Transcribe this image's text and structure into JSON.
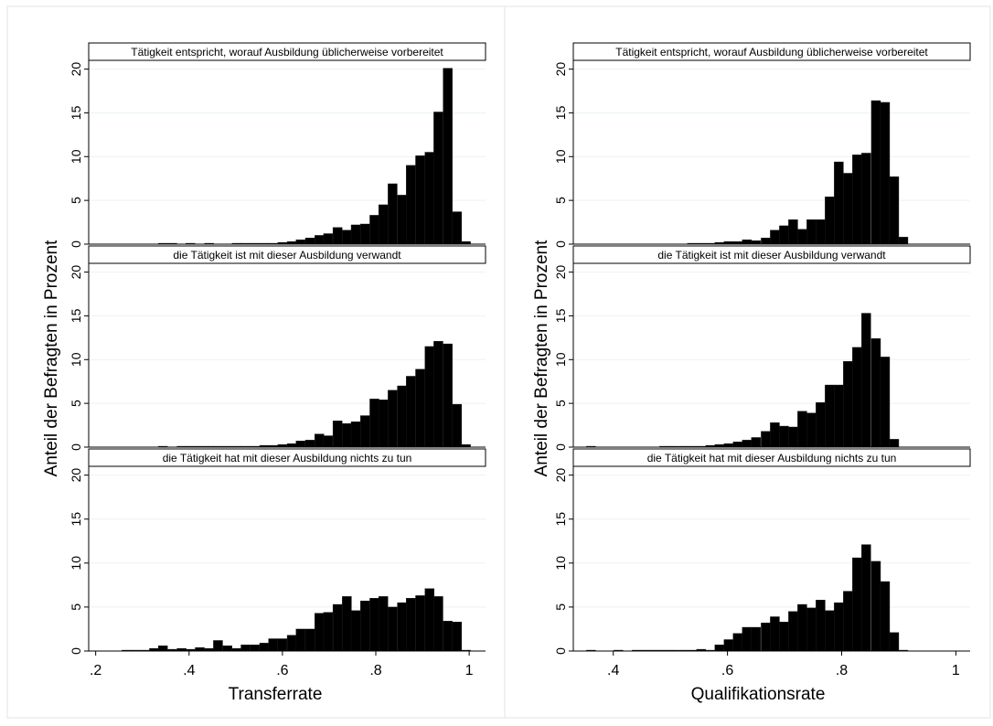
{
  "chart_data": [
    {
      "type": "bar",
      "xlabel": "Transferrate",
      "ylabel": "Anteil der Befragten in Prozent",
      "xlim": [
        0.185,
        1.035
      ],
      "ylim": [
        0,
        21
      ],
      "xticks": [
        0.2,
        0.4,
        0.6,
        0.8,
        1.0
      ],
      "xtick_labels": [
        ".2",
        ".4",
        ".6",
        ".8",
        "1"
      ],
      "yticks": [
        0,
        5,
        10,
        15,
        20
      ],
      "ytick_labels": [
        "0",
        "5",
        "10",
        "15",
        "20"
      ],
      "bin_width": 0.0197,
      "grid": true,
      "panels": [
        {
          "title": "Tätigkeit entspricht, worauf Ausbildung üblicherweise vorbereitet",
          "bins": [
            {
              "x": 0.344,
              "value": 0.1
            },
            {
              "x": 0.364,
              "value": 0.1
            },
            {
              "x": 0.403,
              "value": 0.1
            },
            {
              "x": 0.443,
              "value": 0.1
            },
            {
              "x": 0.502,
              "value": 0.1
            },
            {
              "x": 0.521,
              "value": 0.1
            },
            {
              "x": 0.541,
              "value": 0.1
            },
            {
              "x": 0.561,
              "value": 0.1
            },
            {
              "x": 0.58,
              "value": 0.1
            },
            {
              "x": 0.6,
              "value": 0.2
            },
            {
              "x": 0.62,
              "value": 0.3
            },
            {
              "x": 0.639,
              "value": 0.5
            },
            {
              "x": 0.659,
              "value": 0.7
            },
            {
              "x": 0.679,
              "value": 1.0
            },
            {
              "x": 0.698,
              "value": 1.2
            },
            {
              "x": 0.718,
              "value": 1.9
            },
            {
              "x": 0.738,
              "value": 1.6
            },
            {
              "x": 0.757,
              "value": 2.2
            },
            {
              "x": 0.777,
              "value": 2.3
            },
            {
              "x": 0.797,
              "value": 3.3
            },
            {
              "x": 0.816,
              "value": 4.5
            },
            {
              "x": 0.836,
              "value": 6.9
            },
            {
              "x": 0.856,
              "value": 5.6
            },
            {
              "x": 0.875,
              "value": 9.0
            },
            {
              "x": 0.895,
              "value": 10.1
            },
            {
              "x": 0.915,
              "value": 10.5
            },
            {
              "x": 0.934,
              "value": 15.1
            },
            {
              "x": 0.954,
              "value": 20.1
            },
            {
              "x": 0.974,
              "value": 3.7
            },
            {
              "x": 0.993,
              "value": 0.3
            }
          ]
        },
        {
          "title": "die Tätigkeit ist mit dieser Ausbildung verwandt",
          "bins": [
            {
              "x": 0.344,
              "value": 0.1
            },
            {
              "x": 0.384,
              "value": 0.1
            },
            {
              "x": 0.403,
              "value": 0.1
            },
            {
              "x": 0.423,
              "value": 0.1
            },
            {
              "x": 0.443,
              "value": 0.1
            },
            {
              "x": 0.462,
              "value": 0.1
            },
            {
              "x": 0.482,
              "value": 0.1
            },
            {
              "x": 0.502,
              "value": 0.1
            },
            {
              "x": 0.521,
              "value": 0.1
            },
            {
              "x": 0.541,
              "value": 0.1
            },
            {
              "x": 0.561,
              "value": 0.2
            },
            {
              "x": 0.58,
              "value": 0.2
            },
            {
              "x": 0.6,
              "value": 0.3
            },
            {
              "x": 0.62,
              "value": 0.4
            },
            {
              "x": 0.639,
              "value": 0.7
            },
            {
              "x": 0.659,
              "value": 0.8
            },
            {
              "x": 0.679,
              "value": 1.5
            },
            {
              "x": 0.698,
              "value": 1.3
            },
            {
              "x": 0.718,
              "value": 3.0
            },
            {
              "x": 0.738,
              "value": 2.7
            },
            {
              "x": 0.757,
              "value": 2.9
            },
            {
              "x": 0.777,
              "value": 3.6
            },
            {
              "x": 0.797,
              "value": 5.5
            },
            {
              "x": 0.816,
              "value": 5.4
            },
            {
              "x": 0.836,
              "value": 6.5
            },
            {
              "x": 0.856,
              "value": 7.0
            },
            {
              "x": 0.875,
              "value": 8.1
            },
            {
              "x": 0.895,
              "value": 8.9
            },
            {
              "x": 0.915,
              "value": 11.5
            },
            {
              "x": 0.934,
              "value": 12.1
            },
            {
              "x": 0.954,
              "value": 11.8
            },
            {
              "x": 0.974,
              "value": 4.9
            },
            {
              "x": 0.993,
              "value": 0.3
            }
          ]
        },
        {
          "title": "die Tätigkeit hat mit dieser Ausbildung nichts zu tun",
          "bins": [
            {
              "x": 0.266,
              "value": 0.1
            },
            {
              "x": 0.285,
              "value": 0.1
            },
            {
              "x": 0.305,
              "value": 0.1
            },
            {
              "x": 0.325,
              "value": 0.3
            },
            {
              "x": 0.344,
              "value": 0.6
            },
            {
              "x": 0.364,
              "value": 0.2
            },
            {
              "x": 0.384,
              "value": 0.3
            },
            {
              "x": 0.403,
              "value": 0.2
            },
            {
              "x": 0.423,
              "value": 0.4
            },
            {
              "x": 0.443,
              "value": 0.3
            },
            {
              "x": 0.462,
              "value": 1.2
            },
            {
              "x": 0.482,
              "value": 0.6
            },
            {
              "x": 0.502,
              "value": 0.3
            },
            {
              "x": 0.521,
              "value": 0.7
            },
            {
              "x": 0.541,
              "value": 0.7
            },
            {
              "x": 0.561,
              "value": 0.9
            },
            {
              "x": 0.58,
              "value": 1.4
            },
            {
              "x": 0.6,
              "value": 1.4
            },
            {
              "x": 0.62,
              "value": 1.8
            },
            {
              "x": 0.639,
              "value": 2.5
            },
            {
              "x": 0.659,
              "value": 2.5
            },
            {
              "x": 0.679,
              "value": 4.3
            },
            {
              "x": 0.698,
              "value": 4.4
            },
            {
              "x": 0.718,
              "value": 5.3
            },
            {
              "x": 0.738,
              "value": 6.2
            },
            {
              "x": 0.757,
              "value": 4.6
            },
            {
              "x": 0.777,
              "value": 5.7
            },
            {
              "x": 0.797,
              "value": 6.0
            },
            {
              "x": 0.816,
              "value": 6.2
            },
            {
              "x": 0.836,
              "value": 5.0
            },
            {
              "x": 0.856,
              "value": 5.5
            },
            {
              "x": 0.875,
              "value": 6.0
            },
            {
              "x": 0.895,
              "value": 6.3
            },
            {
              "x": 0.915,
              "value": 7.1
            },
            {
              "x": 0.934,
              "value": 6.2
            },
            {
              "x": 0.954,
              "value": 3.4
            },
            {
              "x": 0.974,
              "value": 3.3
            },
            {
              "x": 0.993,
              "value": 0.1
            }
          ]
        }
      ]
    },
    {
      "type": "bar",
      "xlabel": "Qualifikationsrate",
      "ylabel": "Anteil der Befragten in Prozent",
      "xlim": [
        0.33,
        1.025
      ],
      "ylim": [
        0,
        21
      ],
      "xticks": [
        0.4,
        0.6,
        0.8,
        1.0
      ],
      "xtick_labels": [
        ".4",
        ".6",
        ".8",
        "1"
      ],
      "yticks": [
        0,
        5,
        10,
        15,
        20
      ],
      "ytick_labels": [
        "0",
        "5",
        "10",
        "15",
        "20"
      ],
      "bin_width": 0.0161,
      "grid": true,
      "panels": [
        {
          "title": "Tätigkeit entspricht, worauf Ausbildung üblicherweise vorbereitet",
          "bins": [
            {
              "x": 0.538,
              "value": 0.1
            },
            {
              "x": 0.554,
              "value": 0.1
            },
            {
              "x": 0.57,
              "value": 0.1
            },
            {
              "x": 0.586,
              "value": 0.2
            },
            {
              "x": 0.602,
              "value": 0.3
            },
            {
              "x": 0.618,
              "value": 0.3
            },
            {
              "x": 0.634,
              "value": 0.5
            },
            {
              "x": 0.65,
              "value": 0.4
            },
            {
              "x": 0.667,
              "value": 0.7
            },
            {
              "x": 0.683,
              "value": 1.6
            },
            {
              "x": 0.699,
              "value": 2.1
            },
            {
              "x": 0.715,
              "value": 2.8
            },
            {
              "x": 0.731,
              "value": 1.7
            },
            {
              "x": 0.747,
              "value": 2.8
            },
            {
              "x": 0.763,
              "value": 2.8
            },
            {
              "x": 0.779,
              "value": 5.4
            },
            {
              "x": 0.795,
              "value": 9.4
            },
            {
              "x": 0.811,
              "value": 8.1
            },
            {
              "x": 0.827,
              "value": 10.2
            },
            {
              "x": 0.843,
              "value": 10.4
            },
            {
              "x": 0.86,
              "value": 16.4
            },
            {
              "x": 0.876,
              "value": 16.2
            },
            {
              "x": 0.892,
              "value": 7.7
            },
            {
              "x": 0.908,
              "value": 0.8
            }
          ]
        },
        {
          "title": "die Tätigkeit ist mit dieser Ausbildung verwandt",
          "bins": [
            {
              "x": 0.361,
              "value": 0.1
            },
            {
              "x": 0.489,
              "value": 0.1
            },
            {
              "x": 0.505,
              "value": 0.1
            },
            {
              "x": 0.522,
              "value": 0.1
            },
            {
              "x": 0.538,
              "value": 0.1
            },
            {
              "x": 0.554,
              "value": 0.1
            },
            {
              "x": 0.57,
              "value": 0.2
            },
            {
              "x": 0.586,
              "value": 0.3
            },
            {
              "x": 0.602,
              "value": 0.4
            },
            {
              "x": 0.618,
              "value": 0.6
            },
            {
              "x": 0.634,
              "value": 0.8
            },
            {
              "x": 0.65,
              "value": 1.1
            },
            {
              "x": 0.667,
              "value": 1.8
            },
            {
              "x": 0.683,
              "value": 2.8
            },
            {
              "x": 0.699,
              "value": 2.4
            },
            {
              "x": 0.715,
              "value": 2.3
            },
            {
              "x": 0.731,
              "value": 4.1
            },
            {
              "x": 0.747,
              "value": 3.9
            },
            {
              "x": 0.763,
              "value": 5.1
            },
            {
              "x": 0.779,
              "value": 7.1
            },
            {
              "x": 0.795,
              "value": 7.1
            },
            {
              "x": 0.811,
              "value": 9.8
            },
            {
              "x": 0.827,
              "value": 11.4
            },
            {
              "x": 0.843,
              "value": 15.3
            },
            {
              "x": 0.86,
              "value": 12.4
            },
            {
              "x": 0.876,
              "value": 10.3
            },
            {
              "x": 0.892,
              "value": 0.9
            }
          ]
        },
        {
          "title": "die Tätigkeit hat mit dieser Ausbildung nichts zu tun",
          "bins": [
            {
              "x": 0.361,
              "value": 0.1
            },
            {
              "x": 0.409,
              "value": 0.1
            },
            {
              "x": 0.441,
              "value": 0.1
            },
            {
              "x": 0.457,
              "value": 0.1
            },
            {
              "x": 0.473,
              "value": 0.1
            },
            {
              "x": 0.489,
              "value": 0.1
            },
            {
              "x": 0.505,
              "value": 0.1
            },
            {
              "x": 0.522,
              "value": 0.1
            },
            {
              "x": 0.538,
              "value": 0.1
            },
            {
              "x": 0.554,
              "value": 0.2
            },
            {
              "x": 0.57,
              "value": 0.1
            },
            {
              "x": 0.586,
              "value": 0.7
            },
            {
              "x": 0.602,
              "value": 1.3
            },
            {
              "x": 0.618,
              "value": 2.0
            },
            {
              "x": 0.634,
              "value": 2.7
            },
            {
              "x": 0.65,
              "value": 2.7
            },
            {
              "x": 0.667,
              "value": 3.2
            },
            {
              "x": 0.683,
              "value": 3.9
            },
            {
              "x": 0.699,
              "value": 3.3
            },
            {
              "x": 0.715,
              "value": 4.5
            },
            {
              "x": 0.731,
              "value": 5.3
            },
            {
              "x": 0.747,
              "value": 4.9
            },
            {
              "x": 0.763,
              "value": 5.8
            },
            {
              "x": 0.779,
              "value": 4.6
            },
            {
              "x": 0.795,
              "value": 5.5
            },
            {
              "x": 0.811,
              "value": 6.8
            },
            {
              "x": 0.827,
              "value": 10.6
            },
            {
              "x": 0.843,
              "value": 12.1
            },
            {
              "x": 0.86,
              "value": 10.2
            },
            {
              "x": 0.876,
              "value": 7.9
            },
            {
              "x": 0.892,
              "value": 2.1
            },
            {
              "x": 0.908,
              "value": 0.1
            }
          ]
        }
      ]
    }
  ]
}
